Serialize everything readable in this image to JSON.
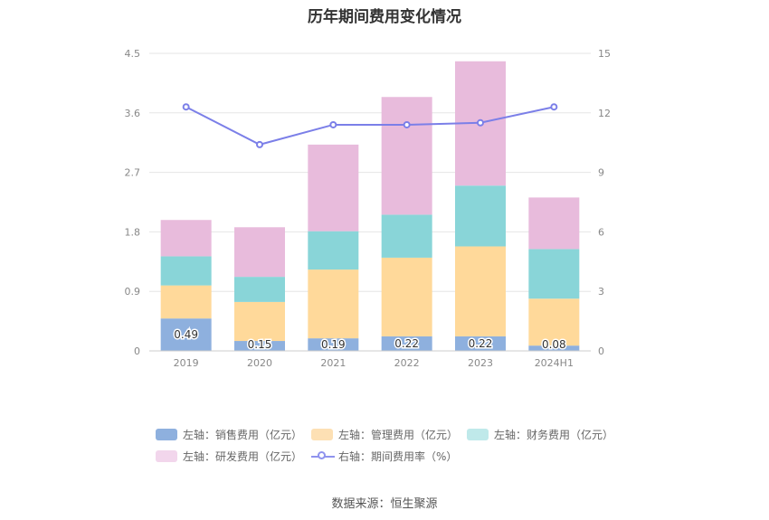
{
  "title": "历年期间费用变化情况",
  "source": "数据来源：恒生聚源",
  "legend": [
    {
      "label": "左轴：销售费用（亿元）",
      "color": "#8eb0de",
      "kind": "bar"
    },
    {
      "label": "左轴：管理费用（亿元）",
      "color": "#fde0b4",
      "kind": "bar"
    },
    {
      "label": "左轴：财务费用（亿元）",
      "color": "#bfe9ea",
      "kind": "bar"
    },
    {
      "label": "左轴：研发费用（亿元）",
      "color": "#f2d6ec",
      "kind": "bar"
    },
    {
      "label": "右轴：期间费用率（%）",
      "color": "#8f93ee",
      "kind": "line"
    }
  ],
  "chart_data": {
    "type": "bar",
    "stacked": true,
    "categories": [
      "2019",
      "2020",
      "2021",
      "2022",
      "2023",
      "2024H1"
    ],
    "series": [
      {
        "name": "左轴：销售费用（亿元）",
        "values": [
          0.49,
          0.15,
          0.19,
          0.22,
          0.22,
          0.08
        ],
        "color": "#8eb0de",
        "labels": [
          "0.49",
          "0.15",
          "0.19",
          "0.22",
          "0.22",
          "0.08"
        ]
      },
      {
        "name": "左轴：管理费用（亿元）",
        "values": [
          0.5,
          0.59,
          1.04,
          1.19,
          1.36,
          0.71
        ],
        "color": "#ffd99a"
      },
      {
        "name": "左轴：财务费用（亿元）",
        "values": [
          0.44,
          0.38,
          0.58,
          0.65,
          0.92,
          0.75
        ],
        "color": "#89d5d8"
      },
      {
        "name": "左轴：研发费用（亿元）",
        "values": [
          0.55,
          0.75,
          1.31,
          1.78,
          1.88,
          0.78
        ],
        "color": "#e8bbdc"
      }
    ],
    "line_series": {
      "name": "右轴：期间费用率（%）",
      "values": [
        12.3,
        10.4,
        11.4,
        11.4,
        11.5,
        12.3
      ],
      "color": "#7b7fe8"
    },
    "y_left": {
      "min": 0,
      "max": 4.5,
      "ticks": [
        "0",
        "0.9",
        "1.8",
        "2.7",
        "3.6",
        "4.5"
      ]
    },
    "y_right": {
      "min": 0,
      "max": 15,
      "ticks": [
        "0",
        "3",
        "6",
        "9",
        "12",
        "15"
      ]
    },
    "grid": true,
    "legend_position": "bottom"
  }
}
